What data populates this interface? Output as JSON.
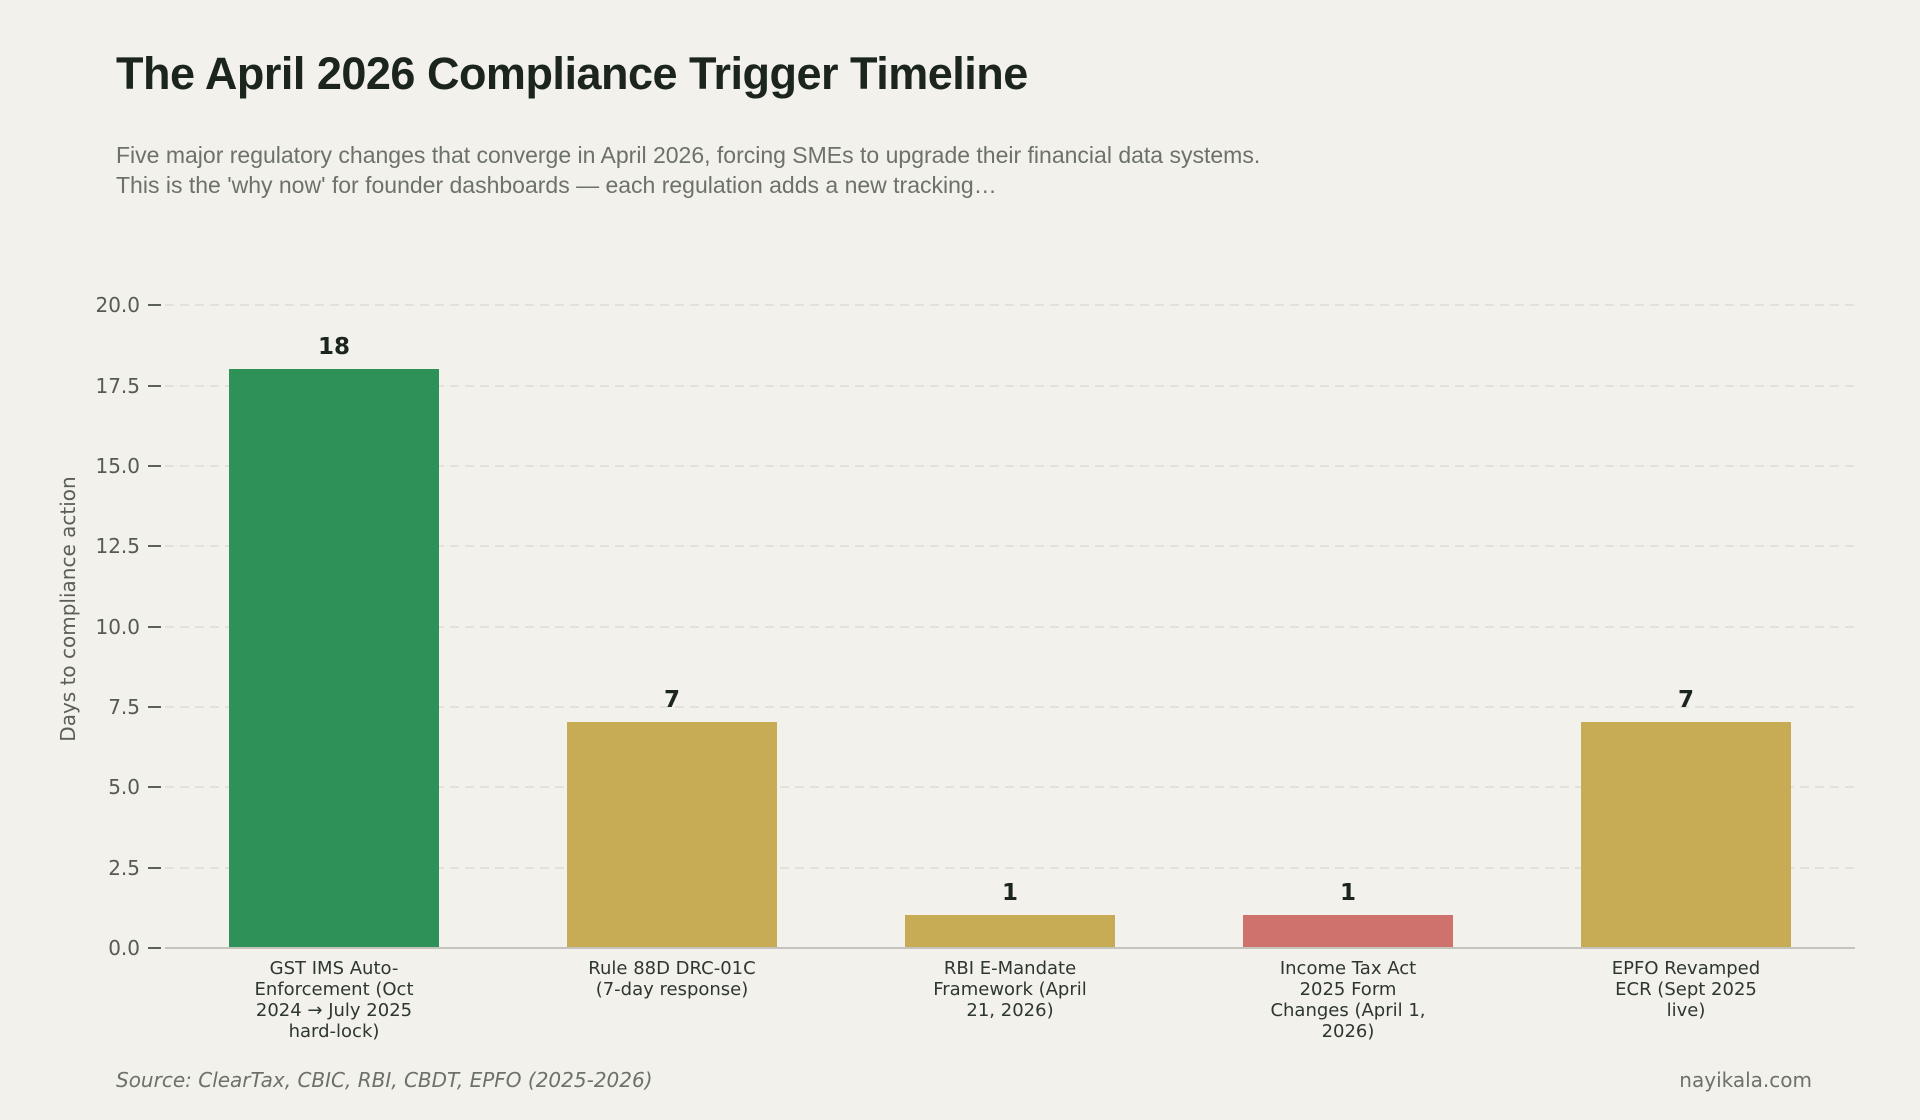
{
  "page": {
    "background": "#f2f1ec",
    "title": "The April 2026 Compliance Trigger Timeline",
    "subtitle": "Five major regulatory changes that converge in April 2026, forcing SMEs to upgrade their financial data systems. This is the 'why now' for founder dashboards — each regulation adds a new tracking…",
    "footer": {
      "source": "Source: ClearTax, CBIC, RBI, CBDT, EPFO (2025-2026)",
      "brand": "nayikala.com"
    }
  },
  "chart_data": {
    "type": "bar",
    "title": "The April 2026 Compliance Trigger Timeline",
    "xlabel": "",
    "ylabel": "Days to compliance action",
    "ylim": [
      0,
      21.1
    ],
    "yticks": [
      0.0,
      2.5,
      5.0,
      7.5,
      10.0,
      12.5,
      15.0,
      17.5,
      20.0
    ],
    "grid": "horizontal-dashed",
    "legend": "none",
    "categories": [
      "GST IMS Auto-Enforcement (Oct 2024 → July 2025 hard-lock)",
      "Rule 88D DRC-01C (7-day response)",
      "RBI E-Mandate Framework (April 21, 2026)",
      "Income Tax Act 2025 Form Changes (April 1, 2026)",
      "EPFO Revamped ECR (Sept 2025 live)"
    ],
    "values": [
      18,
      7,
      1,
      1,
      7
    ],
    "value_labels": [
      "18",
      "7",
      "1",
      "1",
      "7"
    ],
    "bar_colors": [
      "#2e9158",
      "#c7ab55",
      "#c7ab55",
      "#cf716c",
      "#c7ab55"
    ],
    "colors": {
      "background": "#f2f1ec",
      "title_text": "#1b241d",
      "subtitle_text": "#6d7268",
      "tick_text": "#565b52",
      "category_text": "#2e372f",
      "gridline": "#e3e2da",
      "axis_line": "#c4c3bc",
      "green": "#2e9158",
      "gold": "#c7ab55",
      "red": "#cf716c"
    }
  }
}
